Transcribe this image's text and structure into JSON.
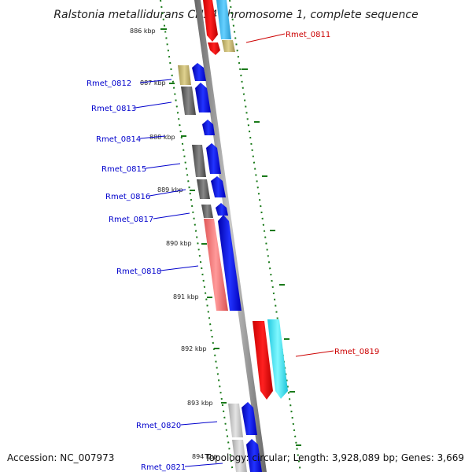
{
  "title": "Ralstonia metallidurans CH34 chromosome 1, complete sequence",
  "accession_text": "Accession: NC_007973",
  "summary_text": "Topology: circular; Length: 3,928,089 bp; Genes: 3,669",
  "colors": {
    "forward_label": "#0000cc",
    "reverse_label": "#cc0000",
    "backbone": "#888888",
    "tick": "#1a7a1a"
  },
  "kbp_labels": [
    {
      "text": "886 kbp"
    },
    {
      "text": "887 kbp"
    },
    {
      "text": "888 kbp"
    },
    {
      "text": "889 kbp"
    },
    {
      "text": "890 kbp"
    },
    {
      "text": "891 kbp"
    },
    {
      "text": "892 kbp"
    },
    {
      "text": "893 kbp"
    },
    {
      "text": "894 kbp"
    }
  ],
  "gene_labels": [
    {
      "text": "Rmet_0811",
      "strand": "reverse"
    },
    {
      "text": "Rmet_0812",
      "strand": "forward"
    },
    {
      "text": "Rmet_0813",
      "strand": "forward"
    },
    {
      "text": "Rmet_0814",
      "strand": "forward"
    },
    {
      "text": "Rmet_0815",
      "strand": "forward"
    },
    {
      "text": "Rmet_0816",
      "strand": "forward"
    },
    {
      "text": "Rmet_0817",
      "strand": "forward"
    },
    {
      "text": "Rmet_0818",
      "strand": "forward"
    },
    {
      "text": "Rmet_0819",
      "strand": "reverse"
    },
    {
      "text": "Rmet_0820",
      "strand": "forward"
    },
    {
      "text": "Rmet_0821",
      "strand": "forward"
    }
  ]
}
